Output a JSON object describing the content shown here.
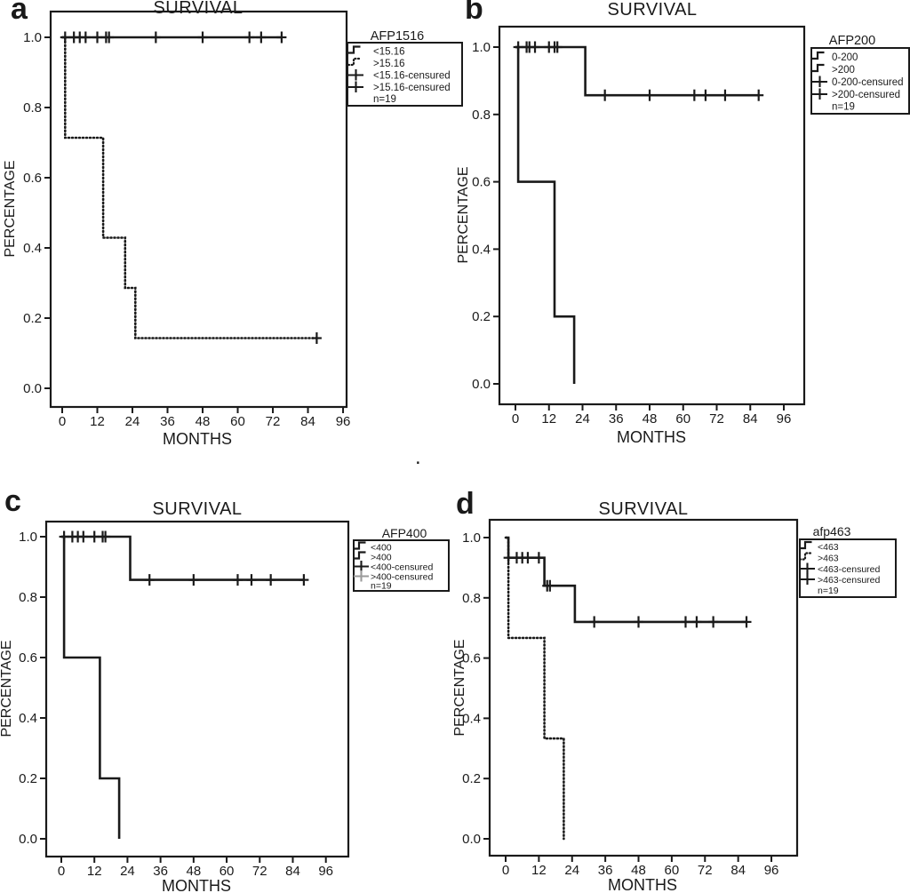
{
  "figure": "Kaplan-Meier survival curves by AFP cutoff, four panels",
  "colors": {
    "ink": "#1a1a1a",
    "background": "#ffffff",
    "muted": "#9a9a9a"
  },
  "stray_mark": ".",
  "chart_data": [
    {
      "type": "line",
      "panel_label": "a",
      "title": "SURVIVAL",
      "xlabel": "MONTHS",
      "ylabel": "PERCENTAGE",
      "xticks": [
        0,
        12,
        24,
        36,
        48,
        60,
        72,
        84,
        96
      ],
      "yticks": [
        "0.0",
        "0.2",
        "0.4",
        "0.6",
        "0.8",
        "1.0"
      ],
      "xlim": [
        0,
        96
      ],
      "ylim": [
        0,
        1
      ],
      "grid": false,
      "legend_position": "right",
      "legend": {
        "title": "AFP1516",
        "items": [
          {
            "label": "<15.16",
            "glyph": "step-solid"
          },
          {
            "label": ">15.16",
            "glyph": "step-dotted"
          },
          {
            "label": "<15.16-censured",
            "glyph": "plus"
          },
          {
            "label": ">15.16-censured",
            "glyph": "plus"
          }
        ],
        "note": "n=19"
      },
      "series": [
        {
          "name": "<15.16",
          "style": "solid",
          "steps": [
            [
              0,
              1.0
            ],
            [
              75,
              1.0
            ]
          ],
          "censors": [
            [
              1,
              1.0
            ],
            [
              4,
              1.0
            ],
            [
              6,
              1.0
            ],
            [
              8,
              1.0
            ],
            [
              12,
              1.0
            ],
            [
              15,
              1.0
            ],
            [
              16,
              1.0
            ],
            [
              32,
              1.0
            ],
            [
              48,
              1.0
            ],
            [
              64,
              1.0
            ],
            [
              68,
              1.0
            ],
            [
              75,
              1.0
            ]
          ]
        },
        {
          "name": ">15.16",
          "style": "dotted",
          "steps": [
            [
              0,
              1.0
            ],
            [
              1,
              1.0
            ],
            [
              1,
              0.714
            ],
            [
              14,
              0.714
            ],
            [
              14,
              0.429
            ],
            [
              21.5,
              0.429
            ],
            [
              21.5,
              0.286
            ],
            [
              25,
              0.286
            ],
            [
              25,
              0.143
            ],
            [
              87,
              0.143
            ]
          ],
          "censors": [
            [
              87,
              0.143
            ]
          ]
        }
      ]
    },
    {
      "type": "line",
      "panel_label": "b",
      "title": "SURVIVAL",
      "xlabel": "MONTHS",
      "ylabel": "PERCENTAGE",
      "xticks": [
        0,
        12,
        24,
        36,
        48,
        60,
        72,
        84,
        96
      ],
      "yticks": [
        "0.0",
        "0.2",
        "0.4",
        "0.6",
        "0.8",
        "1.0"
      ],
      "xlim": [
        0,
        96
      ],
      "ylim": [
        0,
        1
      ],
      "grid": false,
      "legend_position": "right",
      "legend": {
        "title": "AFP200",
        "items": [
          {
            "label": "0-200",
            "glyph": "step-solid"
          },
          {
            "label": ">200",
            "glyph": "step-solid"
          },
          {
            "label": "0-200-censured",
            "glyph": "plus"
          },
          {
            "label": ">200-censured",
            "glyph": "plus"
          }
        ],
        "note": "n=19"
      },
      "series": [
        {
          "name": "0-200",
          "style": "solid",
          "steps": [
            [
              0,
              1.0
            ],
            [
              25,
              1.0
            ],
            [
              25,
              0.857
            ],
            [
              87,
              0.857
            ]
          ],
          "censors": [
            [
              1,
              1.0
            ],
            [
              4,
              1.0
            ],
            [
              5,
              1.0
            ],
            [
              7,
              1.0
            ],
            [
              12,
              1.0
            ],
            [
              14,
              1.0
            ],
            [
              15,
              1.0
            ],
            [
              32,
              0.857
            ],
            [
              48,
              0.857
            ],
            [
              64,
              0.857
            ],
            [
              68,
              0.857
            ],
            [
              75,
              0.857
            ],
            [
              87,
              0.857
            ]
          ]
        },
        {
          "name": ">200",
          "style": "solid",
          "steps": [
            [
              0,
              1.0
            ],
            [
              1,
              1.0
            ],
            [
              1,
              0.6
            ],
            [
              14,
              0.6
            ],
            [
              14,
              0.2
            ],
            [
              21,
              0.2
            ],
            [
              21,
              0.0
            ]
          ],
          "censors": []
        }
      ]
    },
    {
      "type": "line",
      "panel_label": "c",
      "title": "SURVIVAL",
      "xlabel": "MONTHS",
      "ylabel": "PERCENTAGE",
      "xticks": [
        0,
        12,
        24,
        36,
        48,
        60,
        72,
        84,
        96
      ],
      "yticks": [
        "0.0",
        "0.2",
        "0.4",
        "0.6",
        "0.8",
        "1.0"
      ],
      "xlim": [
        0,
        96
      ],
      "ylim": [
        0,
        1
      ],
      "grid": false,
      "legend_position": "right",
      "legend": {
        "title": "AFP400",
        "items": [
          {
            "label": "<400",
            "glyph": "step-solid"
          },
          {
            "label": ">400",
            "glyph": "step-solid"
          },
          {
            "label": "<400-censured",
            "glyph": "plus"
          },
          {
            "label": ">400-censured",
            "glyph": "plus",
            "muted": true
          }
        ],
        "note": "n=19"
      },
      "series": [
        {
          "name": "<400",
          "style": "solid",
          "steps": [
            [
              0,
              1.0
            ],
            [
              25,
              1.0
            ],
            [
              25,
              0.857
            ],
            [
              88,
              0.857
            ]
          ],
          "censors": [
            [
              1,
              1.0
            ],
            [
              4,
              1.0
            ],
            [
              6,
              1.0
            ],
            [
              8,
              1.0
            ],
            [
              12,
              1.0
            ],
            [
              15,
              1.0
            ],
            [
              16,
              1.0
            ],
            [
              32,
              0.857
            ],
            [
              48,
              0.857
            ],
            [
              64,
              0.857
            ],
            [
              69,
              0.857
            ],
            [
              76,
              0.857
            ],
            [
              88,
              0.857
            ]
          ]
        },
        {
          "name": ">400",
          "style": "solid",
          "steps": [
            [
              0,
              1.0
            ],
            [
              1,
              1.0
            ],
            [
              1,
              0.6
            ],
            [
              14,
              0.6
            ],
            [
              14,
              0.2
            ],
            [
              21,
              0.2
            ],
            [
              21,
              0.0
            ]
          ],
          "censors": []
        }
      ]
    },
    {
      "type": "line",
      "panel_label": "d",
      "title": "SURVIVAL",
      "xlabel": "MONTHS",
      "ylabel": "PERCENTAGE",
      "xticks": [
        0,
        12,
        24,
        36,
        48,
        60,
        72,
        84,
        96
      ],
      "yticks": [
        "0.0",
        "0.2",
        "0.4",
        "0.6",
        "0.8",
        "1.0"
      ],
      "xlim": [
        0,
        96
      ],
      "ylim": [
        0,
        1
      ],
      "grid": false,
      "legend_position": "right",
      "legend": {
        "title": "afp463",
        "items": [
          {
            "label": "<463",
            "glyph": "step-solid"
          },
          {
            "label": ">463",
            "glyph": "step-dotted"
          },
          {
            "label": "<463-censured",
            "glyph": "plus"
          },
          {
            "label": ">463-censured",
            "glyph": "plus"
          }
        ],
        "note": "n=19"
      },
      "series": [
        {
          "name": "<463",
          "style": "solid",
          "steps": [
            [
              0,
              1.0
            ],
            [
              1,
              1.0
            ],
            [
              1,
              0.933
            ],
            [
              14,
              0.933
            ],
            [
              14,
              0.84
            ],
            [
              25,
              0.84
            ],
            [
              25,
              0.72
            ],
            [
              87,
              0.72
            ]
          ],
          "censors": [
            [
              1,
              0.933
            ],
            [
              4,
              0.933
            ],
            [
              6,
              0.933
            ],
            [
              8,
              0.933
            ],
            [
              12,
              0.933
            ],
            [
              15,
              0.84
            ],
            [
              16,
              0.84
            ],
            [
              32,
              0.72
            ],
            [
              48,
              0.72
            ],
            [
              65,
              0.72
            ],
            [
              69,
              0.72
            ],
            [
              75,
              0.72
            ],
            [
              87,
              0.72
            ]
          ]
        },
        {
          "name": ">463",
          "style": "dotted",
          "steps": [
            [
              0,
              1.0
            ],
            [
              1,
              1.0
            ],
            [
              1,
              0.667
            ],
            [
              14,
              0.667
            ],
            [
              14,
              0.333
            ],
            [
              21,
              0.333
            ],
            [
              21,
              0.0
            ]
          ],
          "censors": []
        }
      ]
    }
  ]
}
